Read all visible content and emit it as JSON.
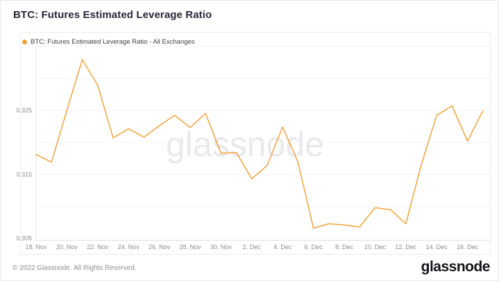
{
  "title": "BTC: Futures Estimated Leverage Ratio",
  "watermark": {
    "text": "glassnode"
  },
  "footer": {
    "copyright": "© 2022 Glassnode. All Rights Reserved.",
    "logo_text": "glassnode"
  },
  "colors": {
    "accent_orange": "#f0a23b",
    "grid": "#f3f3f5",
    "axis": "#e3e3e6",
    "tick_label": "#8b8b90",
    "watermark": "#e9e9ec"
  },
  "chart_data": {
    "type": "line",
    "title": "BTC: Futures Estimated Leverage Ratio",
    "xlabel": "",
    "ylabel": "",
    "ylim": [
      0.3047,
      0.337
    ],
    "grid": "horizontal",
    "legend_position": "top-left",
    "series": [
      {
        "name": "BTC: Futures Estimated Leverage Ratio - All Exchanges",
        "color": "#f0a23b",
        "dates": [
          "18 Nov",
          "19 Nov",
          "20 Nov",
          "21 Nov",
          "22 Nov",
          "23 Nov",
          "24 Nov",
          "25 Nov",
          "26 Nov",
          "27 Nov",
          "28 Nov",
          "29 Nov",
          "30 Nov",
          "1 Dec",
          "2 Dec",
          "3 Dec",
          "4 Dec",
          "5 Dec",
          "6 Dec",
          "7 Dec",
          "8 Dec",
          "9 Dec",
          "10 Dec",
          "11 Dec",
          "12 Dec",
          "13 Dec",
          "14 Dec",
          "15 Dec",
          "16 Dec",
          "17 Dec"
        ],
        "values": [
          0.3181,
          0.3169,
          0.325,
          0.3329,
          0.3289,
          0.3207,
          0.3221,
          0.3208,
          0.3226,
          0.3242,
          0.3223,
          0.3245,
          0.3183,
          0.3184,
          0.3143,
          0.3164,
          0.3224,
          0.3169,
          0.3066,
          0.3073,
          0.3071,
          0.3068,
          0.3098,
          0.3095,
          0.3073,
          0.3165,
          0.3242,
          0.3257,
          0.3202,
          0.3249
        ]
      }
    ],
    "x_ticks": [
      {
        "label": "18. Nov",
        "index": 0
      },
      {
        "label": "20. Nov",
        "index": 2
      },
      {
        "label": "22. Nov",
        "index": 4
      },
      {
        "label": "24. Nov",
        "index": 6
      },
      {
        "label": "26. Nov",
        "index": 8
      },
      {
        "label": "28. Nov",
        "index": 10
      },
      {
        "label": "30. Nov",
        "index": 12
      },
      {
        "label": "2. Dec",
        "index": 14
      },
      {
        "label": "4. Dec",
        "index": 16
      },
      {
        "label": "6. Dec",
        "index": 18
      },
      {
        "label": "8. Dec",
        "index": 20
      },
      {
        "label": "10. Dec",
        "index": 22
      },
      {
        "label": "12. Dec",
        "index": 24
      },
      {
        "label": "14. Dec",
        "index": 26
      },
      {
        "label": "16. Dec",
        "index": 28
      }
    ],
    "y_ticks": [
      {
        "value": 0.325,
        "label": "0.325"
      },
      {
        "value": 0.315,
        "label": "0.315"
      },
      {
        "value": 0.305,
        "label": "0.305"
      }
    ],
    "grid_values": [
      0.335,
      0.33,
      0.325,
      0.32,
      0.315,
      0.31,
      0.305
    ]
  }
}
